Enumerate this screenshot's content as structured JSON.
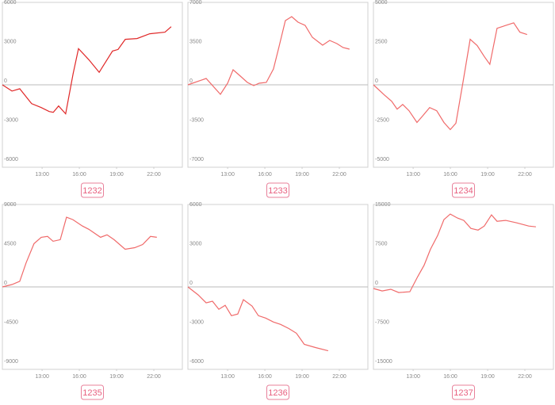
{
  "chart_data": [
    {
      "type": "line",
      "label": "1232",
      "color": "#e02828",
      "x": [
        9.8,
        10.57,
        11.2,
        12.16,
        12.93,
        13.57,
        13.9,
        14.33,
        14.9,
        15.5,
        15.93,
        16.76,
        17.6,
        18.67,
        19.12,
        19.7,
        20.65,
        21.67,
        22.9,
        23.4
      ],
      "values": [
        0,
        -480,
        -300,
        -1440,
        -1740,
        -2040,
        -2100,
        -1620,
        -2220,
        840,
        2760,
        1920,
        960,
        2580,
        2700,
        3480,
        3540,
        3900,
        4020,
        4440
      ],
      "xlim": [
        9.8,
        24.3
      ],
      "ylim": [
        -6300,
        6300
      ],
      "xticks": [
        {
          "value": 13,
          "label": "13:00"
        },
        {
          "value": 16,
          "label": "16:00"
        },
        {
          "value": 19,
          "label": "19:00"
        },
        {
          "value": 22,
          "label": "22:00"
        }
      ],
      "yticks": [
        -6000,
        -3000,
        0,
        3000,
        6000
      ]
    },
    {
      "type": "line",
      "label": "1233",
      "color": "#f06a6a",
      "x": [
        9.8,
        11.27,
        12.42,
        13.0,
        13.44,
        13.95,
        14.59,
        15.1,
        15.54,
        16.12,
        16.69,
        17.14,
        17.65,
        18.16,
        18.67,
        19.24,
        19.82,
        20.65,
        21.22,
        21.8,
        22.3,
        22.82
      ],
      "values": [
        0,
        566,
        -849,
        141,
        1344,
        849,
        212,
        -71,
        141,
        212,
        1414,
        3394,
        5728,
        6081,
        5586,
        5303,
        4242,
        3535,
        3960,
        3677,
        3323,
        3182
      ],
      "xlim": [
        9.8,
        24.3
      ],
      "ylim": [
        -7350,
        7350
      ],
      "xticks": [
        {
          "value": 13,
          "label": "13:00"
        },
        {
          "value": 16,
          "label": "16:00"
        },
        {
          "value": 19,
          "label": "19:00"
        },
        {
          "value": 22,
          "label": "22:00"
        }
      ],
      "yticks": [
        -7000,
        -3500,
        0,
        3500,
        7000
      ]
    },
    {
      "type": "line",
      "label": "1234",
      "color": "#f06a6a",
      "x": [
        9.8,
        10.69,
        11.27,
        11.71,
        12.16,
        12.67,
        13.31,
        13.69,
        14.33,
        14.9,
        15.48,
        15.99,
        16.44,
        17.01,
        17.59,
        18.16,
        18.73,
        19.18,
        19.76,
        21.1,
        21.6,
        22.18
      ],
      "values": [
        0,
        -650,
        -1050,
        -1550,
        -1250,
        -1650,
        -2400,
        -2050,
        -1450,
        -1650,
        -2400,
        -2850,
        -2450,
        150,
        2900,
        2500,
        1800,
        1300,
        3600,
        3950,
        3350,
        3200
      ],
      "xlim": [
        9.8,
        24.3
      ],
      "ylim": [
        -5250,
        5250
      ],
      "xticks": [
        {
          "value": 13,
          "label": "13:00"
        },
        {
          "value": 16,
          "label": "16:00"
        },
        {
          "value": 19,
          "label": "19:00"
        },
        {
          "value": 22,
          "label": "22:00"
        }
      ],
      "yticks": [
        -5000,
        -2500,
        0,
        2500,
        5000
      ]
    },
    {
      "type": "line",
      "label": "1235",
      "color": "#f06a6a",
      "x": [
        9.8,
        10.57,
        11.2,
        11.71,
        12.35,
        12.93,
        13.44,
        13.88,
        14.46,
        14.97,
        15.48,
        16.25,
        16.76,
        17.71,
        18.23,
        18.8,
        19.69,
        20.46,
        21.1,
        21.73,
        22.24
      ],
      "values": [
        0,
        275,
        643,
        2754,
        4957,
        5692,
        5784,
        5233,
        5416,
        7986,
        7711,
        6977,
        6609,
        5692,
        5967,
        5416,
        4314,
        4498,
        4865,
        5784,
        5692
      ],
      "xlim": [
        9.8,
        24.3
      ],
      "ylim": [
        -9450,
        9450
      ],
      "xticks": [
        {
          "value": 13,
          "label": "13:00"
        },
        {
          "value": 16,
          "label": "16:00"
        },
        {
          "value": 19,
          "label": "19:00"
        },
        {
          "value": 22,
          "label": "22:00"
        }
      ],
      "yticks": [
        -9000,
        -4500,
        0,
        4500,
        9000
      ]
    },
    {
      "type": "line",
      "label": "1236",
      "color": "#f06a6a",
      "x": [
        9.8,
        10.63,
        11.27,
        11.78,
        12.29,
        12.8,
        13.31,
        13.82,
        14.27,
        14.97,
        15.48,
        16.06,
        16.69,
        17.27,
        17.91,
        18.54,
        19.18,
        20.08,
        21.1
      ],
      "values": [
        0,
        -610,
        -1220,
        -1098,
        -1708,
        -1403,
        -2196,
        -2074,
        -976,
        -1464,
        -2196,
        -2379,
        -2684,
        -2867,
        -3172,
        -3538,
        -4392,
        -4636,
        -4880
      ],
      "xlim": [
        9.8,
        24.3
      ],
      "ylim": [
        -6300,
        6300
      ],
      "xticks": [
        {
          "value": 13,
          "label": "13:00"
        },
        {
          "value": 16,
          "label": "16:00"
        },
        {
          "value": 19,
          "label": "19:00"
        },
        {
          "value": 22,
          "label": "22:00"
        }
      ],
      "yticks": [
        -6000,
        -3000,
        0,
        3000,
        6000
      ]
    },
    {
      "type": "line",
      "label": "1237",
      "color": "#f06a6a",
      "x": [
        9.8,
        10.5,
        11.2,
        11.84,
        12.73,
        13.37,
        13.88,
        14.39,
        14.97,
        15.48,
        15.99,
        16.57,
        17.08,
        17.65,
        18.23,
        18.73,
        19.31,
        19.76,
        20.46,
        21.35,
        22.31,
        22.89
      ],
      "values": [
        -306,
        -765,
        -459,
        -1071,
        -918,
        1989,
        4131,
        7191,
        9792,
        12852,
        13923,
        13158,
        12699,
        11169,
        10863,
        11628,
        13770,
        12546,
        12699,
        12240,
        11628,
        11475
      ],
      "xlim": [
        9.8,
        24.3
      ],
      "ylim": [
        -15750,
        15750
      ],
      "xticks": [
        {
          "value": 13,
          "label": "13:00"
        },
        {
          "value": 16,
          "label": "16:00"
        },
        {
          "value": 19,
          "label": "19:00"
        },
        {
          "value": 22,
          "label": "22:00"
        }
      ],
      "yticks": [
        -15000,
        -7500,
        0,
        7500,
        15000
      ]
    }
  ]
}
